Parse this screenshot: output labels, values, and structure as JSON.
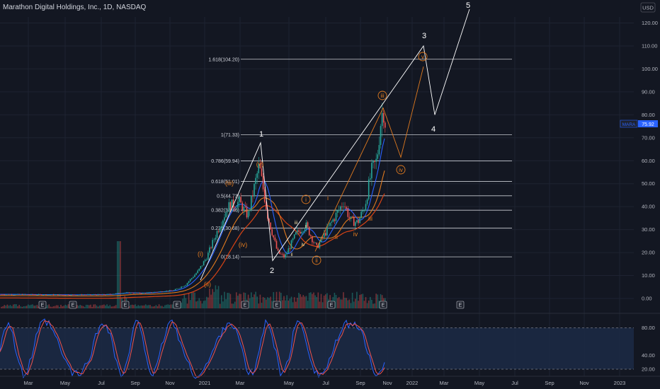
{
  "header": {
    "title": "Marathon Digital Holdings, Inc., 1D, NASDAQ",
    "currency_badge": "USD"
  },
  "price_tag": {
    "symbol": "MARA",
    "value": "75.92"
  },
  "colors": {
    "background": "#131722",
    "candle_up": "#26a69a",
    "candle_down": "#ef5350",
    "wave_white": "#ffffff",
    "wave_orange": "#e07a1f",
    "ma_blue": "#2962ff",
    "ma_orange": "#e07a1f",
    "ma_red": "#d84315",
    "stoch_k": "#2962ff",
    "stoch_d": "#ef5350"
  },
  "chart_data": {
    "type": "line",
    "y_ticks": [
      "120.00",
      "110.00",
      "100.00",
      "90.00",
      "80.00",
      "70.00",
      "60.00",
      "50.00",
      "40.00",
      "30.00",
      "20.00",
      "10.00",
      "0.00"
    ],
    "x_ticks": [
      "Mar",
      "May",
      "Jul",
      "Sep",
      "Nov",
      "2021",
      "Mar",
      "May",
      "Jul",
      "Sep",
      "Nov",
      "2022",
      "Mar",
      "May",
      "Jul",
      "Sep",
      "Nov",
      "2023"
    ],
    "stoch_ticks": [
      "80.00",
      "40.00",
      "20.00"
    ],
    "fib_levels": [
      {
        "label": "1.618(104.20)",
        "value": 104.2
      },
      {
        "label": "1(71.33)",
        "value": 71.33
      },
      {
        "label": "0.786(59.94)",
        "value": 59.94
      },
      {
        "label": "0.618(51.01)",
        "value": 51.01
      },
      {
        "label": "0.5(44.73)",
        "value": 44.73
      },
      {
        "label": "0.382(38.46)",
        "value": 38.46
      },
      {
        "label": "0.236(30.68)",
        "value": 30.68
      },
      {
        "label": "0(18.14)",
        "value": 18.14
      }
    ],
    "wave_labels": [
      "1",
      "2",
      "3",
      "4",
      "5"
    ],
    "sub_wave_labels": [
      "(i)",
      "(ii)",
      "(iii)",
      "(iv)",
      "(v)",
      "i",
      "ii",
      "iii",
      "iv",
      "v"
    ],
    "circled_labels": [
      "i",
      "ii",
      "iii",
      "iv",
      "v"
    ],
    "earnings_marker": "E"
  }
}
